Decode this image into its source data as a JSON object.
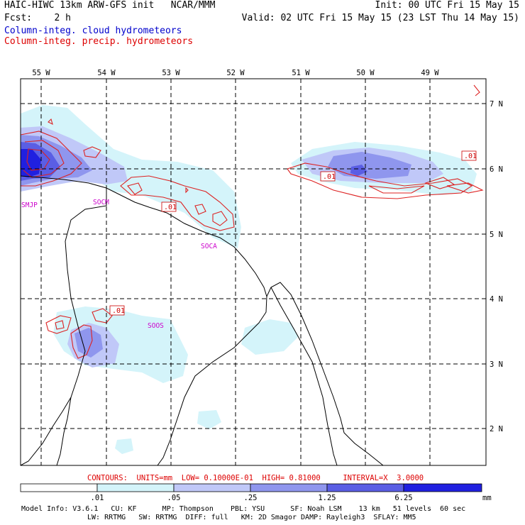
{
  "header": {
    "title": "HAIC-HIWC 13km ARW-GFS init   NCAR/MMM",
    "init": "Init: 00 UTC Fri 15 May 15",
    "fcst": "Fcst:    2 h",
    "valid": "Valid: 02 UTC Fri 15 May 15 (23 LST Thu 14 May 15)",
    "legend_cloud": "Column-integ. cloud hydrometeors",
    "legend_precip": "Column-integ. precip. hydrometeors"
  },
  "colors": {
    "cloud_text": "#0000cc",
    "precip_text": "#dd0000",
    "fill_levels": [
      "#ffffff",
      "#d4f4fa",
      "#c0c8f8",
      "#8f96ee",
      "#5a5ee4",
      "#2020e0"
    ]
  },
  "axes": {
    "lon_labels": [
      "55 W",
      "54 W",
      "53 W",
      "52 W",
      "51 W",
      "50 W",
      "49 W"
    ],
    "lat_labels": [
      "7 N",
      "6 N",
      "5 N",
      "4 N",
      "3 N",
      "2 N"
    ]
  },
  "stations": [
    "SMJP",
    "SOCM",
    "SOCA",
    "SOOS"
  ],
  "contour_labels": [
    ".01",
    ".01",
    ".01",
    ".01"
  ],
  "footer": {
    "contours_line": "CONTOURS:  UNITS=mm  LOW= 0.10000E-01  HIGH= 0.81000     INTERVAL=X  3.0000",
    "colorbar_ticks": [
      ".01",
      ".05",
      ".25",
      "1.25",
      "6.25"
    ],
    "colorbar_unit": "mm",
    "model_line1": "Model Info: V3.6.1   CU: KF      MP: Thompson    PBL: YSU      SF: Noah LSM    13 km   51 levels  60 sec",
    "model_line2": "LW: RRTMG   SW: RRTMG  DIFF: full   KM: 2D Smagor DAMP: Rayleigh3  SFLAY: MM5"
  }
}
